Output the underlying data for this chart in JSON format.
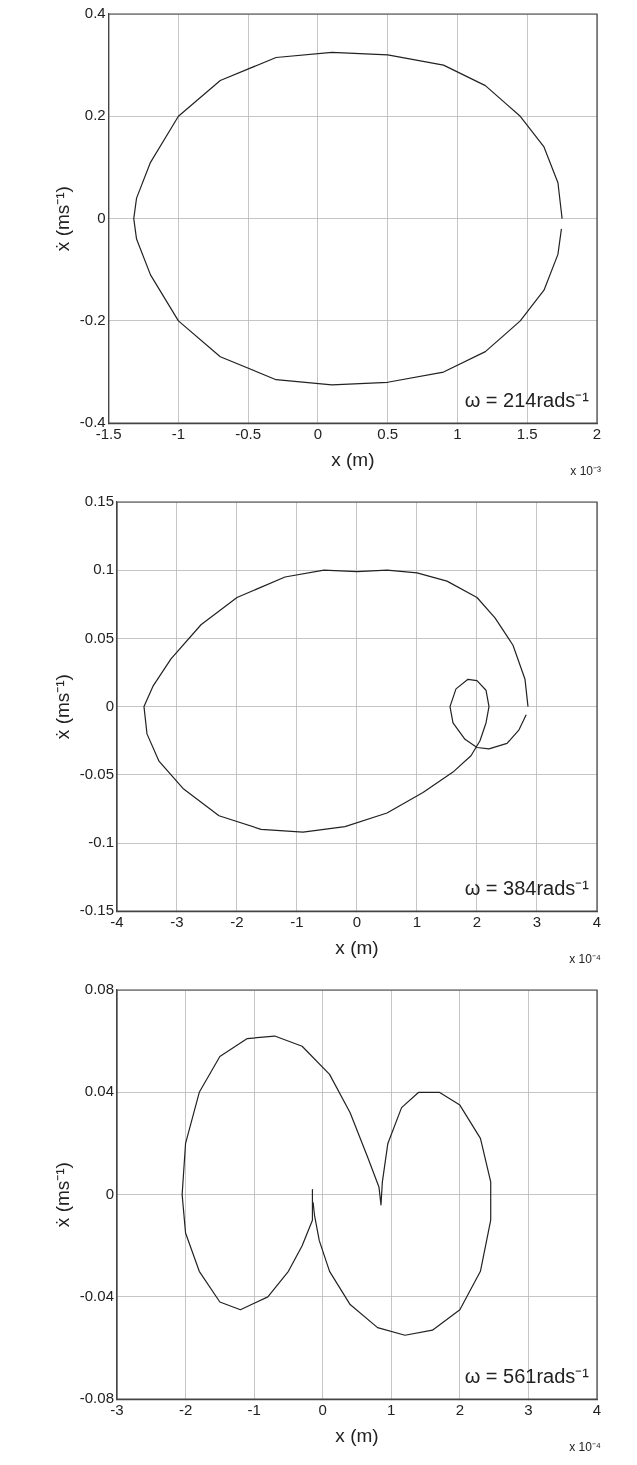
{
  "chart_data": [
    {
      "type": "line",
      "xlabel": "x (m)",
      "ylabel": "ẋ (ms⁻¹)",
      "annotations": [
        "ω = 214rads⁻¹",
        "x 10⁻³"
      ],
      "xlim": [
        -1.5,
        2
      ],
      "xticks": [
        -1.5,
        -1,
        -0.5,
        0,
        0.5,
        1,
        1.5,
        2
      ],
      "ylim": [
        -0.4,
        0.4
      ],
      "yticks": [
        -0.4,
        -0.2,
        0,
        0.2,
        0.4
      ],
      "grid": true,
      "marker": "none",
      "line_style": "solid",
      "series": [
        {
          "color": "#222222",
          "x": [
            1.75,
            1.72,
            1.62,
            1.45,
            1.2,
            0.9,
            0.5,
            0.1,
            -0.3,
            -0.7,
            -1.0,
            -1.2,
            -1.3,
            -1.32,
            -1.3,
            -1.2,
            -1.0,
            -0.7,
            -0.3,
            0.1,
            0.5,
            0.9,
            1.2,
            1.45,
            1.62,
            1.72,
            1.745
          ],
          "values": [
            0,
            0.07,
            0.14,
            0.2,
            0.26,
            0.3,
            0.32,
            0.325,
            0.315,
            0.27,
            0.2,
            0.11,
            0.04,
            0,
            -0.04,
            -0.11,
            -0.2,
            -0.27,
            -0.315,
            -0.325,
            -0.32,
            -0.3,
            -0.26,
            -0.2,
            -0.14,
            -0.07,
            -0.02
          ]
        }
      ]
    },
    {
      "type": "line",
      "xlabel": "x (m)",
      "ylabel": "ẋ (ms⁻¹)",
      "annotations": [
        "ω = 384rads⁻¹",
        "x 10⁻⁴"
      ],
      "xlim": [
        -4,
        4
      ],
      "xticks": [
        -4,
        -3,
        -2,
        -1,
        0,
        1,
        2,
        3,
        4
      ],
      "ylim": [
        -0.15,
        0.15
      ],
      "yticks": [
        -0.15,
        -0.1,
        -0.05,
        0,
        0.05,
        0.1,
        0.15
      ],
      "grid": true,
      "marker": "none",
      "line_style": "solid",
      "series": [
        {
          "color": "#222222",
          "x": [
            2.85,
            2.8,
            2.6,
            2.3,
            2.0,
            1.5,
            1.0,
            0.5,
            0,
            -0.55,
            -1.2,
            -2,
            -2.6,
            -3.1,
            -3.4,
            -3.55,
            -3.5,
            -3.3,
            -2.9,
            -2.3,
            -1.6,
            -0.9,
            -0.2,
            0.5,
            1.1,
            1.6,
            1.9,
            2.05,
            2.15,
            2.2,
            2.15,
            2.0,
            1.85,
            1.65,
            1.55,
            1.6,
            1.8,
            2.0,
            2.2,
            2.5,
            2.7,
            2.82
          ],
          "values": [
            0,
            0.02,
            0.045,
            0.065,
            0.08,
            0.092,
            0.098,
            0.1,
            0.099,
            0.1,
            0.095,
            0.08,
            0.06,
            0.035,
            0.015,
            0,
            -0.02,
            -0.04,
            -0.06,
            -0.08,
            -0.09,
            -0.092,
            -0.088,
            -0.078,
            -0.063,
            -0.048,
            -0.036,
            -0.025,
            -0.012,
            0,
            0.012,
            0.019,
            0.02,
            0.013,
            0,
            -0.012,
            -0.024,
            -0.03,
            -0.031,
            -0.027,
            -0.017,
            -0.006
          ]
        }
      ]
    },
    {
      "type": "line",
      "xlabel": "x (m)",
      "ylabel": "ẋ (ms⁻¹)",
      "annotations": [
        "ω = 561rads⁻¹",
        "x 10⁻⁴"
      ],
      "xlim": [
        -3,
        4
      ],
      "xticks": [
        -3,
        -2,
        -1,
        0,
        1,
        2,
        3,
        4
      ],
      "ylim": [
        -0.08,
        0.08
      ],
      "yticks": [
        -0.08,
        -0.04,
        0,
        0.04,
        0.08
      ],
      "grid": true,
      "marker": "none",
      "line_style": "solid",
      "series": [
        {
          "color": "#222222",
          "x": [
            -0.15,
            -0.15,
            -0.3,
            -0.5,
            -0.8,
            -1.2,
            -1.5,
            -1.8,
            -2.0,
            -2.05,
            -2.0,
            -1.8,
            -1.5,
            -1.1,
            -0.7,
            -0.3,
            0.1,
            0.4,
            0.65,
            0.82,
            0.85,
            0.87,
            0.95,
            1.15,
            1.4,
            1.7,
            2.0,
            2.3,
            2.45,
            2.45,
            2.3,
            2.0,
            1.6,
            1.2,
            0.8,
            0.4,
            0.1,
            -0.05,
            -0.12,
            -0.14
          ],
          "values": [
            0.002,
            -0.01,
            -0.02,
            -0.03,
            -0.04,
            -0.045,
            -0.042,
            -0.03,
            -0.015,
            0,
            0.02,
            0.04,
            0.054,
            0.061,
            0.062,
            0.058,
            0.047,
            0.032,
            0.015,
            0.003,
            -0.004,
            0.005,
            0.02,
            0.034,
            0.04,
            0.04,
            0.035,
            0.022,
            0.005,
            -0.01,
            -0.03,
            -0.045,
            -0.053,
            -0.055,
            -0.052,
            -0.043,
            -0.03,
            -0.018,
            -0.008,
            -0.003
          ]
        }
      ]
    }
  ]
}
